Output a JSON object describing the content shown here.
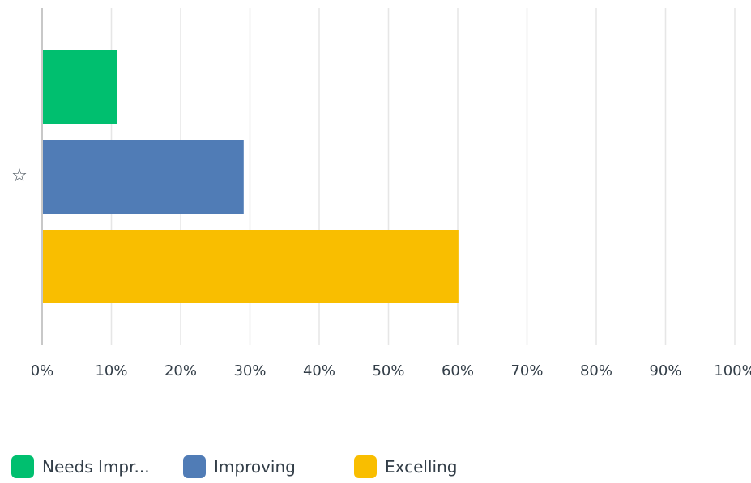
{
  "chart_data": {
    "type": "bar",
    "orientation": "horizontal",
    "categories": [
      "☆"
    ],
    "series": [
      {
        "name": "Needs Impr...",
        "values": [
          10.8
        ],
        "color": "#00bf6f"
      },
      {
        "name": "Improving",
        "values": [
          29.1
        ],
        "color": "#507cb6"
      },
      {
        "name": "Excelling",
        "values": [
          60.1
        ],
        "color": "#f9be00"
      }
    ],
    "xlim": [
      0,
      100
    ],
    "x_ticks": [
      "0%",
      "10%",
      "20%",
      "30%",
      "40%",
      "50%",
      "60%",
      "70%",
      "80%",
      "90%",
      "100%"
    ],
    "grid": true,
    "legend_position": "bottom-left",
    "title": "",
    "xlabel": "",
    "ylabel": ""
  }
}
